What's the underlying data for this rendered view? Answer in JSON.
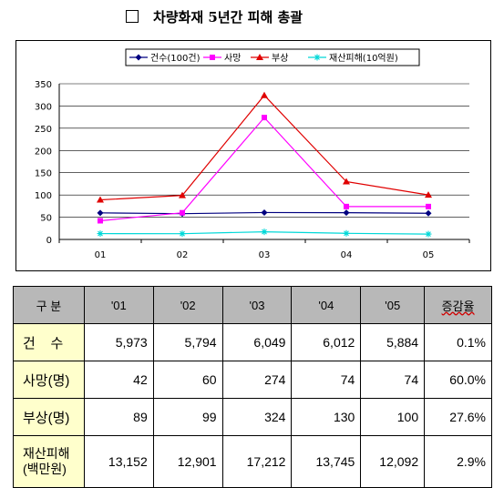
{
  "title": "차량화재 5년간 피해 총괄",
  "legend": [
    {
      "label": "건수(100건)",
      "color": "#000080",
      "marker": "diamond"
    },
    {
      "label": "사망",
      "color": "#ff00ff",
      "marker": "square"
    },
    {
      "label": "부상",
      "color": "#e00000",
      "marker": "triangle"
    },
    {
      "label": "재산피해(10억원)",
      "color": "#00d8d8",
      "marker": "asterisk"
    }
  ],
  "chart_data": {
    "type": "line",
    "categories": [
      "01",
      "02",
      "03",
      "04",
      "05"
    ],
    "yticks": [
      "0",
      "50",
      "100",
      "150",
      "200",
      "250",
      "300",
      "350"
    ],
    "ylim": [
      0,
      350
    ],
    "grid": true,
    "legend_position": "top",
    "series": [
      {
        "name": "건수(100건)",
        "values": [
          59.73,
          57.94,
          60.49,
          60.12,
          58.84
        ]
      },
      {
        "name": "사망",
        "values": [
          42,
          60,
          274,
          74,
          74
        ]
      },
      {
        "name": "부상",
        "values": [
          89,
          99,
          324,
          130,
          100
        ]
      },
      {
        "name": "재산피해(10억원)",
        "values": [
          13.152,
          12.901,
          17.212,
          13.745,
          12.092
        ]
      }
    ]
  },
  "table": {
    "header": [
      "구    분",
      "'01",
      "'02",
      "'03",
      "'04",
      "'05",
      "증감율"
    ],
    "rows": [
      {
        "label": "건    수",
        "values": [
          "5,973",
          "5,794",
          "6,049",
          "6,012",
          "5,884",
          "0.1%"
        ]
      },
      {
        "label": "사망(명)",
        "values": [
          "42",
          "60",
          "274",
          "74",
          "74",
          "60.0%"
        ]
      },
      {
        "label": "부상(명)",
        "values": [
          "89",
          "99",
          "324",
          "130",
          "100",
          "27.6%"
        ]
      },
      {
        "label": "재산피해\n(백만원)",
        "values": [
          "13,152",
          "12,901",
          "17,212",
          "13,745",
          "12,092",
          "2.9%"
        ]
      }
    ]
  }
}
